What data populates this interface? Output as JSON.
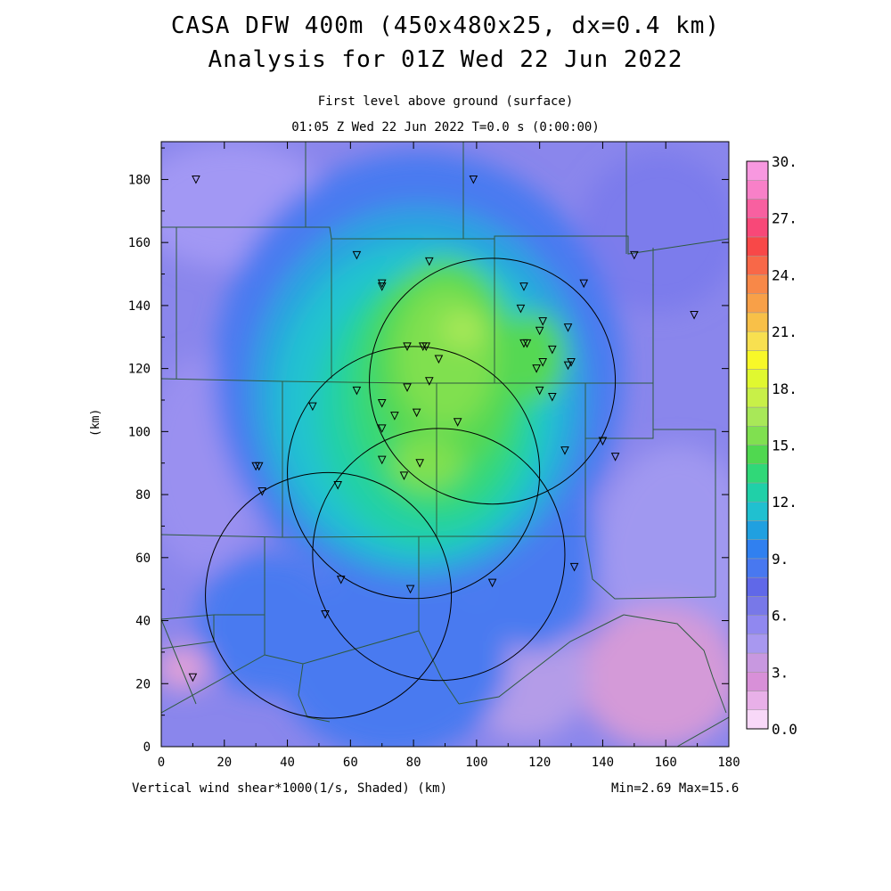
{
  "title": {
    "line1": "CASA DFW 400m (450x480x25, dx=0.4 km)",
    "line2": "Analysis for 01Z Wed 22 Jun 2022",
    "sub1": "First level above ground (surface)",
    "sub2": "01:05 Z Wed 22 Jun 2022    T=0.0 s (0:00:00)"
  },
  "footer": {
    "variable": "Vertical wind shear*1000(1/s, Shaded)  (km)",
    "range": "Min=2.69 Max=15.6"
  },
  "axes": {
    "ylabel": "(km)",
    "x_ticks": [
      "0",
      "20",
      "40",
      "60",
      "80",
      "100",
      "120",
      "140",
      "160",
      "180"
    ],
    "y_ticks": [
      "0",
      "20",
      "40",
      "60",
      "80",
      "100",
      "120",
      "140",
      "160",
      "180"
    ],
    "xlim": [
      0,
      180
    ],
    "ylim": [
      0,
      192
    ]
  },
  "colorbar": {
    "labels": [
      "0.0",
      "3.",
      "6.",
      "9.",
      "12.",
      "15.",
      "18.",
      "21.",
      "24.",
      "27.",
      "30."
    ],
    "colors": [
      "#f8d8f8",
      "#e8b0e8",
      "#d890d8",
      "#c898e0",
      "#a898f0",
      "#9088f0",
      "#7878e8",
      "#6068e8",
      "#4878f0",
      "#3080f0",
      "#20a0e0",
      "#20c0d0",
      "#20d0a8",
      "#30d878",
      "#50d850",
      "#80e050",
      "#a8e858",
      "#c8f048",
      "#e0f830",
      "#f8f828",
      "#f8e050",
      "#f8c048",
      "#f8a048",
      "#f88848",
      "#f86848",
      "#f84848",
      "#f84878",
      "#f860a0",
      "#f880c8",
      "#f898e0"
    ]
  },
  "radars": [
    {
      "cx": 105,
      "cy": 116,
      "r": 39
    },
    {
      "cx": 80,
      "cy": 87,
      "r": 40
    },
    {
      "cx": 88,
      "cy": 61,
      "r": 40
    },
    {
      "cx": 53,
      "cy": 48,
      "r": 39
    }
  ],
  "stations": [
    [
      11,
      180
    ],
    [
      99,
      180
    ],
    [
      62,
      156
    ],
    [
      150,
      156
    ],
    [
      85,
      154
    ],
    [
      70,
      147
    ],
    [
      70,
      146
    ],
    [
      115,
      146
    ],
    [
      134,
      147
    ],
    [
      114,
      139
    ],
    [
      121,
      135
    ],
    [
      169,
      137
    ],
    [
      120,
      132
    ],
    [
      129,
      133
    ],
    [
      115,
      128
    ],
    [
      116,
      128
    ],
    [
      84,
      127
    ],
    [
      78,
      127
    ],
    [
      83,
      127
    ],
    [
      124,
      126
    ],
    [
      88,
      123
    ],
    [
      121,
      122
    ],
    [
      130,
      122
    ],
    [
      129,
      121
    ],
    [
      119,
      120
    ],
    [
      85,
      116
    ],
    [
      78,
      114
    ],
    [
      62,
      113
    ],
    [
      120,
      113
    ],
    [
      70,
      109
    ],
    [
      124,
      111
    ],
    [
      48,
      108
    ],
    [
      74,
      105
    ],
    [
      81,
      106
    ],
    [
      94,
      103
    ],
    [
      70,
      101
    ],
    [
      140,
      97
    ],
    [
      128,
      94
    ],
    [
      144,
      92
    ],
    [
      30,
      89
    ],
    [
      31,
      89
    ],
    [
      70,
      91
    ],
    [
      82,
      90
    ],
    [
      77,
      86
    ],
    [
      56,
      83
    ],
    [
      32,
      81
    ],
    [
      131,
      57
    ],
    [
      57,
      53
    ],
    [
      105,
      52
    ],
    [
      79,
      50
    ],
    [
      52,
      42
    ],
    [
      10,
      22
    ]
  ]
}
